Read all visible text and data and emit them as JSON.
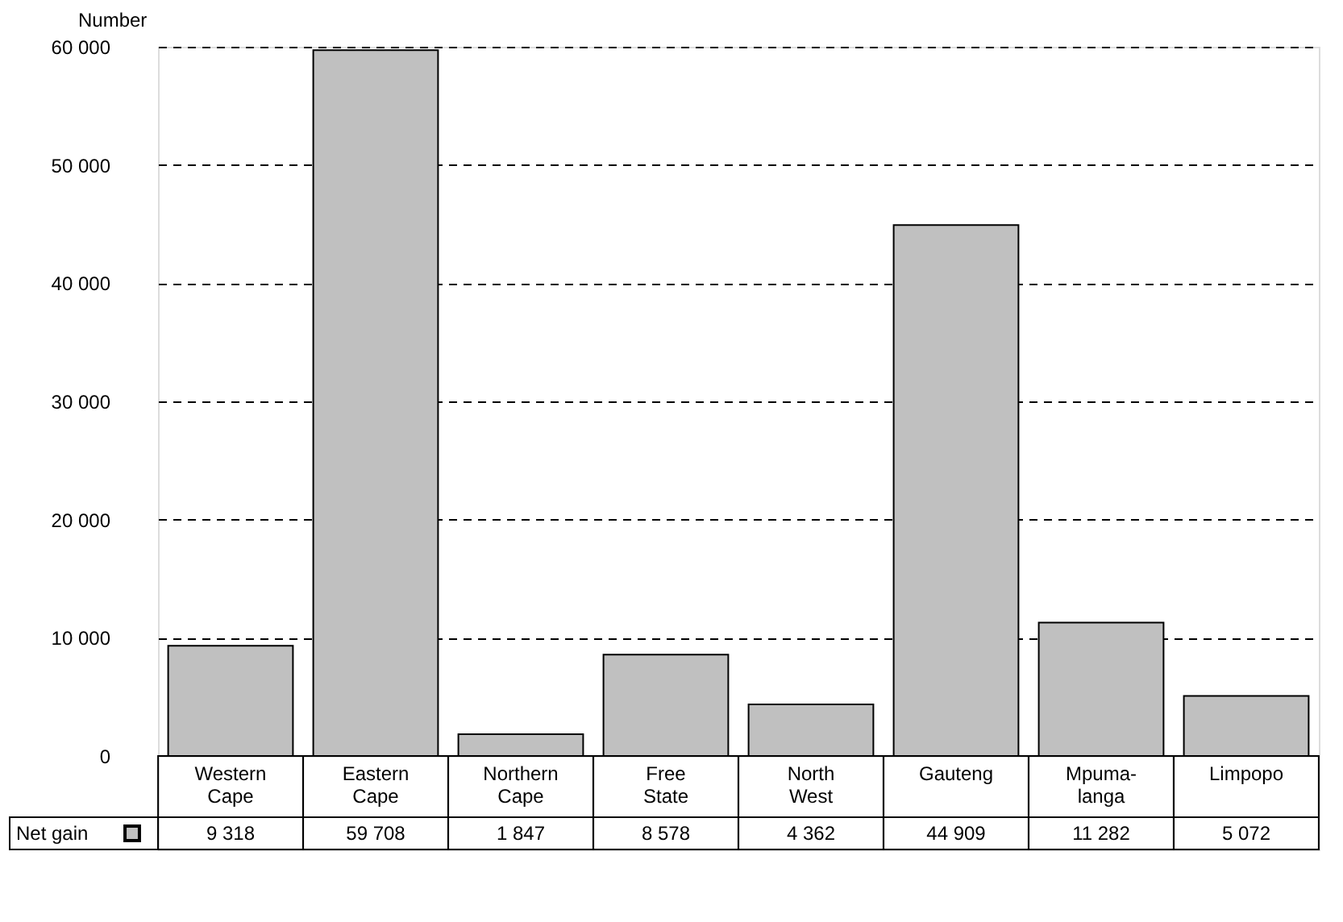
{
  "chart_data": {
    "type": "bar",
    "ylabel": "Number",
    "categories": [
      "Western Cape",
      "Eastern Cape",
      "Northern Cape",
      "Free State",
      "North West",
      "Gauteng",
      "Mpuma-langa",
      "Limpopo"
    ],
    "series": [
      {
        "name": "Net gain",
        "color": "#c0c0c0",
        "values": [
          9318,
          59708,
          1847,
          8578,
          4362,
          44909,
          11282,
          5072
        ],
        "value_labels": [
          "9 318",
          "59 708",
          "1 847",
          "8 578",
          "4 362",
          "44 909",
          "11 282",
          "5 072"
        ]
      }
    ],
    "ylim": [
      0,
      60000
    ],
    "yticks": [
      0,
      {
        "value": 10000,
        "label": "10 000"
      },
      {
        "value": 20000,
        "label": "20 000"
      },
      {
        "value": 30000,
        "label": "30 000"
      },
      {
        "value": 40000,
        "label": "40 000"
      },
      {
        "value": 50000,
        "label": "50 000"
      },
      {
        "value": 60000,
        "label": "60 000"
      }
    ],
    "grid": "y",
    "line_style": "dashed",
    "legend": "bottom left",
    "data_labels": true
  }
}
